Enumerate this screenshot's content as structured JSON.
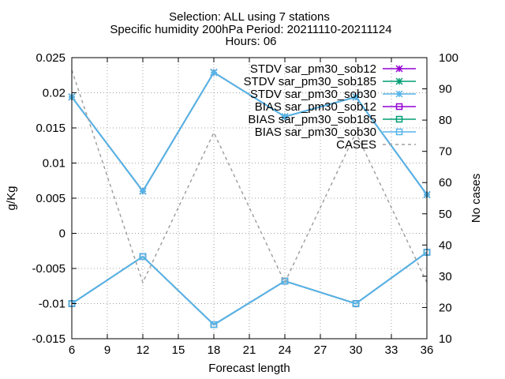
{
  "chart_data": {
    "type": "line",
    "title_lines": [
      "Selection: ALL using     7 stations",
      "Specific humidity 200hPa    Period: 20211110-20211124",
      "Hours: 06"
    ],
    "xlabel": "Forecast length",
    "ylabel": "g/Kg",
    "y2label": "No cases",
    "x_ticks": [
      6,
      9,
      12,
      15,
      18,
      21,
      24,
      27,
      30,
      33,
      36
    ],
    "y_ticks": [
      "-0.015",
      "-0.01",
      "-0.005",
      "0",
      "0.005",
      "0.01",
      "0.015",
      "0.02",
      "0.025"
    ],
    "y2_ticks": [
      "10",
      "20",
      "30",
      "40",
      "50",
      "60",
      "70",
      "80",
      "90",
      "100"
    ],
    "xlim": [
      6,
      36
    ],
    "ylim": [
      -0.015,
      0.025
    ],
    "y2lim": [
      10,
      100
    ],
    "grid": true,
    "legend_position": "top-right",
    "x": [
      6,
      12,
      18,
      24,
      30,
      36
    ],
    "series": [
      {
        "name": "STDV sar_pm30_sob12",
        "axis": "y",
        "color": "#9400d3",
        "marker": "star",
        "dash": "solid",
        "values": [
          0.0194,
          0.006,
          0.0229,
          0.0166,
          0.0194,
          0.0055
        ]
      },
      {
        "name": "STDV sar_pm30_sob185",
        "axis": "y",
        "color": "#009e73",
        "marker": "star",
        "dash": "solid",
        "values": [
          0.0194,
          0.006,
          0.0229,
          0.0166,
          0.0194,
          0.0055
        ]
      },
      {
        "name": "STDV sar_pm30_sob30",
        "axis": "y",
        "color": "#56b4e9",
        "marker": "star",
        "dash": "solid",
        "values": [
          0.0194,
          0.006,
          0.0229,
          0.0166,
          0.0194,
          0.0055
        ]
      },
      {
        "name": "BIAS sar_pm30_sob12",
        "axis": "y",
        "color": "#9400d3",
        "marker": "square",
        "dash": "solid",
        "values": [
          -0.01,
          -0.0033,
          -0.013,
          -0.0068,
          -0.01,
          -0.0027
        ]
      },
      {
        "name": "BIAS sar_pm30_sob185",
        "axis": "y",
        "color": "#009e73",
        "marker": "square",
        "dash": "solid",
        "values": [
          -0.01,
          -0.0033,
          -0.013,
          -0.0068,
          -0.01,
          -0.0027
        ]
      },
      {
        "name": "BIAS sar_pm30_sob30",
        "axis": "y",
        "color": "#56b4e9",
        "marker": "square",
        "dash": "solid",
        "values": [
          -0.01,
          -0.0033,
          -0.013,
          -0.0068,
          -0.01,
          -0.0027
        ]
      },
      {
        "name": "CASES",
        "axis": "y2",
        "color": "#a0a0a0",
        "marker": "none",
        "dash": "dashed",
        "values": [
          96,
          28,
          76,
          28,
          76,
          28
        ]
      }
    ]
  }
}
